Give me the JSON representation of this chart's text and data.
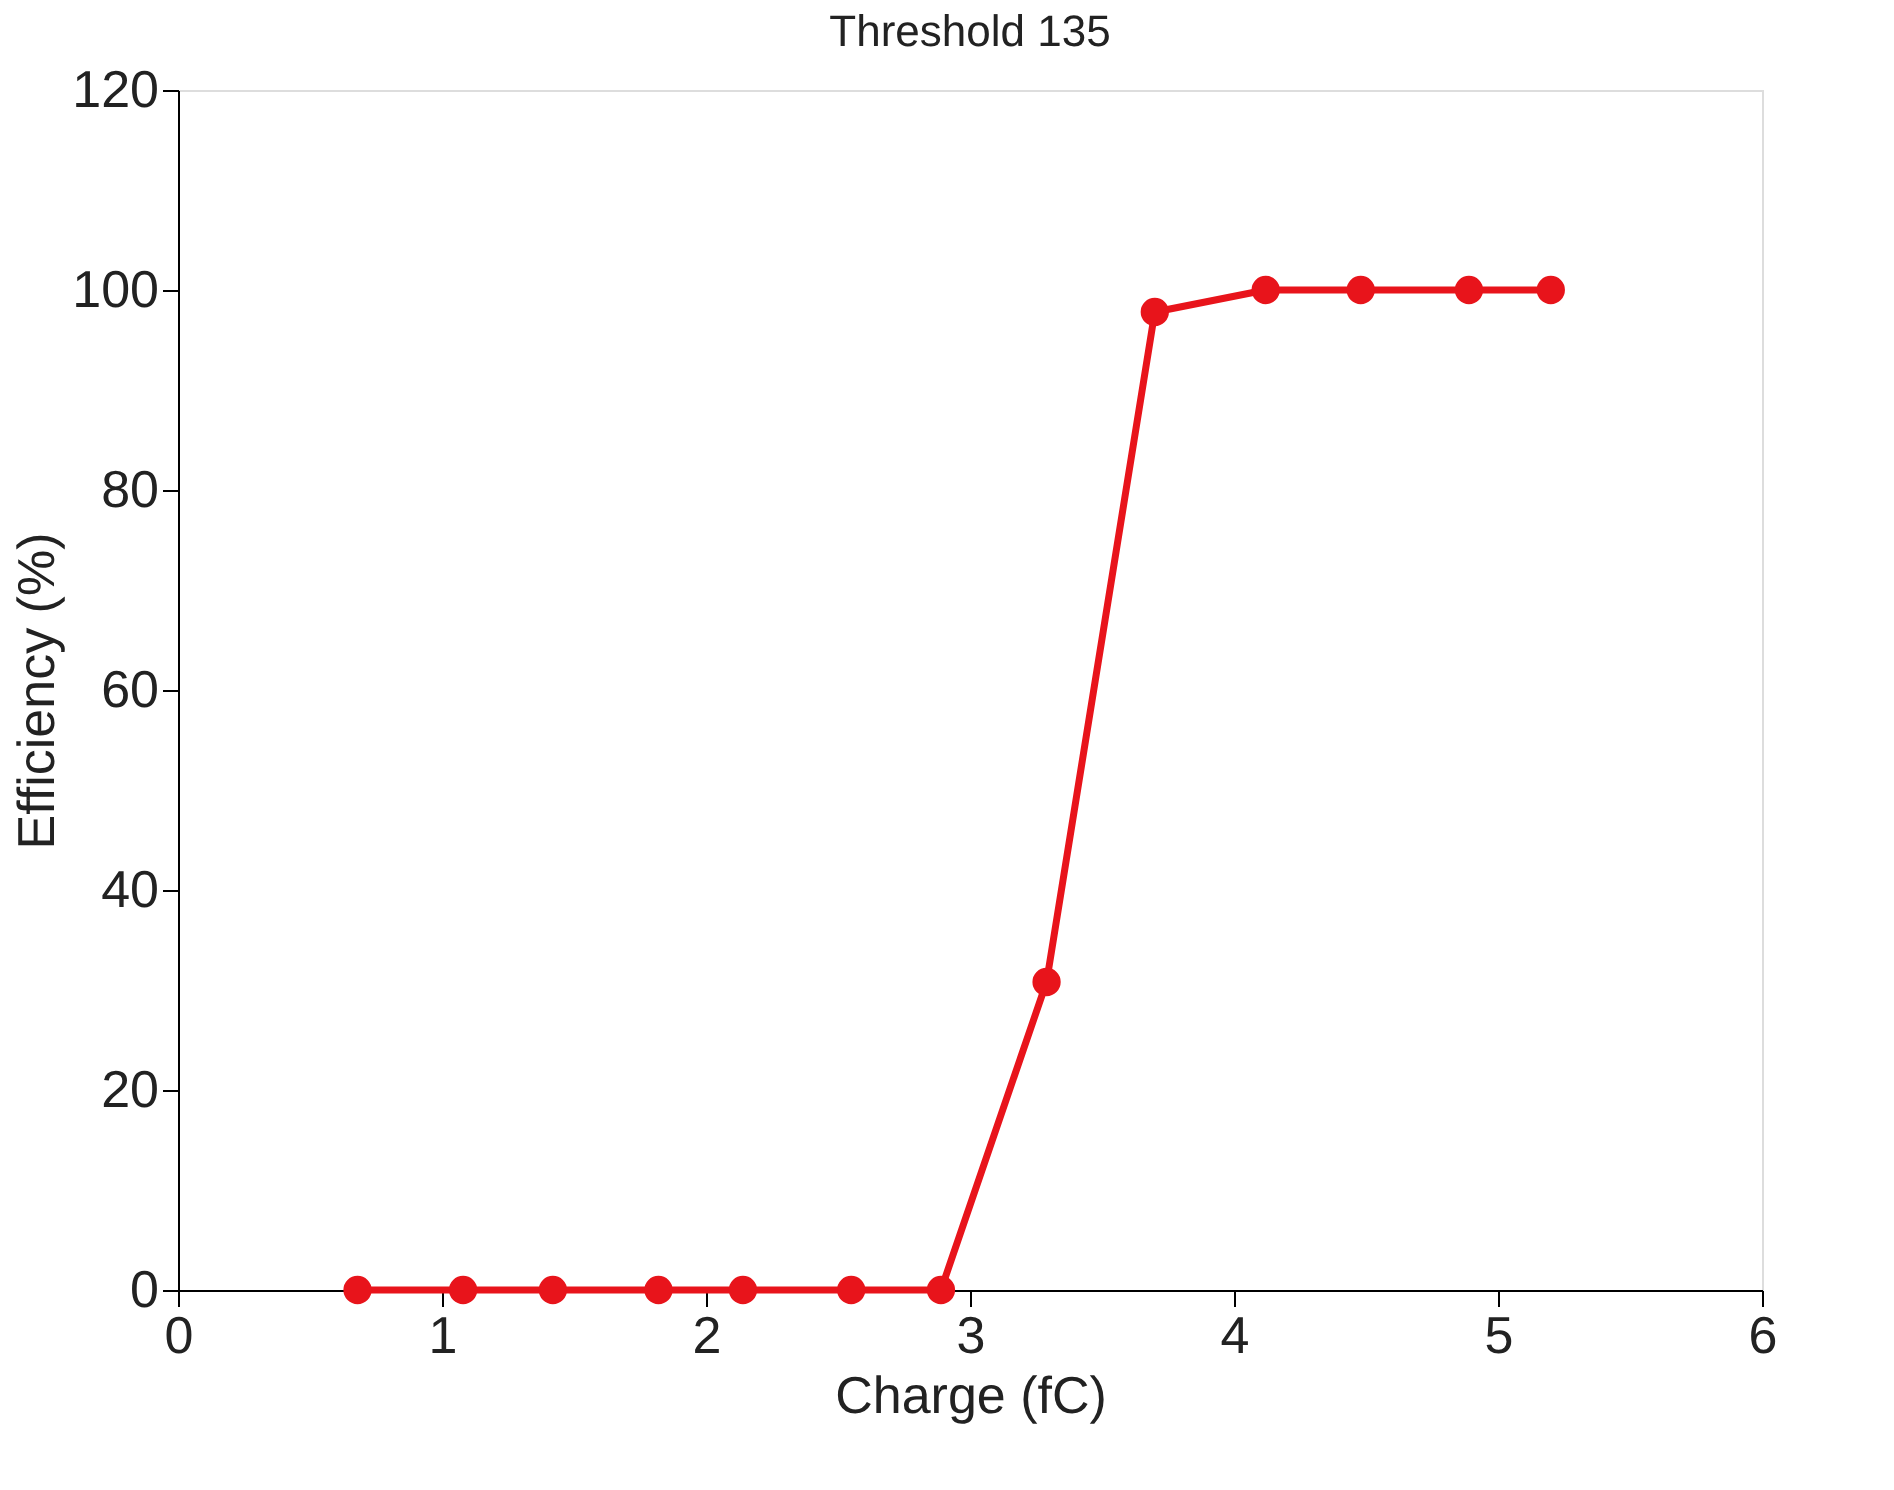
{
  "chart_data": {
    "type": "line",
    "title": "Threshold 135",
    "xlabel": "Charge (fC)",
    "ylabel": "Efficiency (%)",
    "x": [
      0.68,
      1.08,
      1.42,
      1.82,
      2.14,
      2.55,
      2.89,
      3.29,
      3.7,
      4.12,
      4.48,
      4.89,
      5.2
    ],
    "series": [
      {
        "color": "#e8141b",
        "values": [
          0,
          0,
          0,
          0,
          0,
          0,
          0,
          30.8,
          97.8,
          100,
          100,
          100,
          100
        ]
      }
    ],
    "xlim": [
      0,
      6
    ],
    "xticks": [
      0,
      1,
      2,
      3,
      4,
      5,
      6
    ],
    "ylim": [
      0,
      120
    ],
    "yticks": [
      0,
      20,
      40,
      60,
      80,
      100,
      120
    ],
    "grid": false,
    "legend": false,
    "marker": "circle",
    "line_style": "solid"
  }
}
